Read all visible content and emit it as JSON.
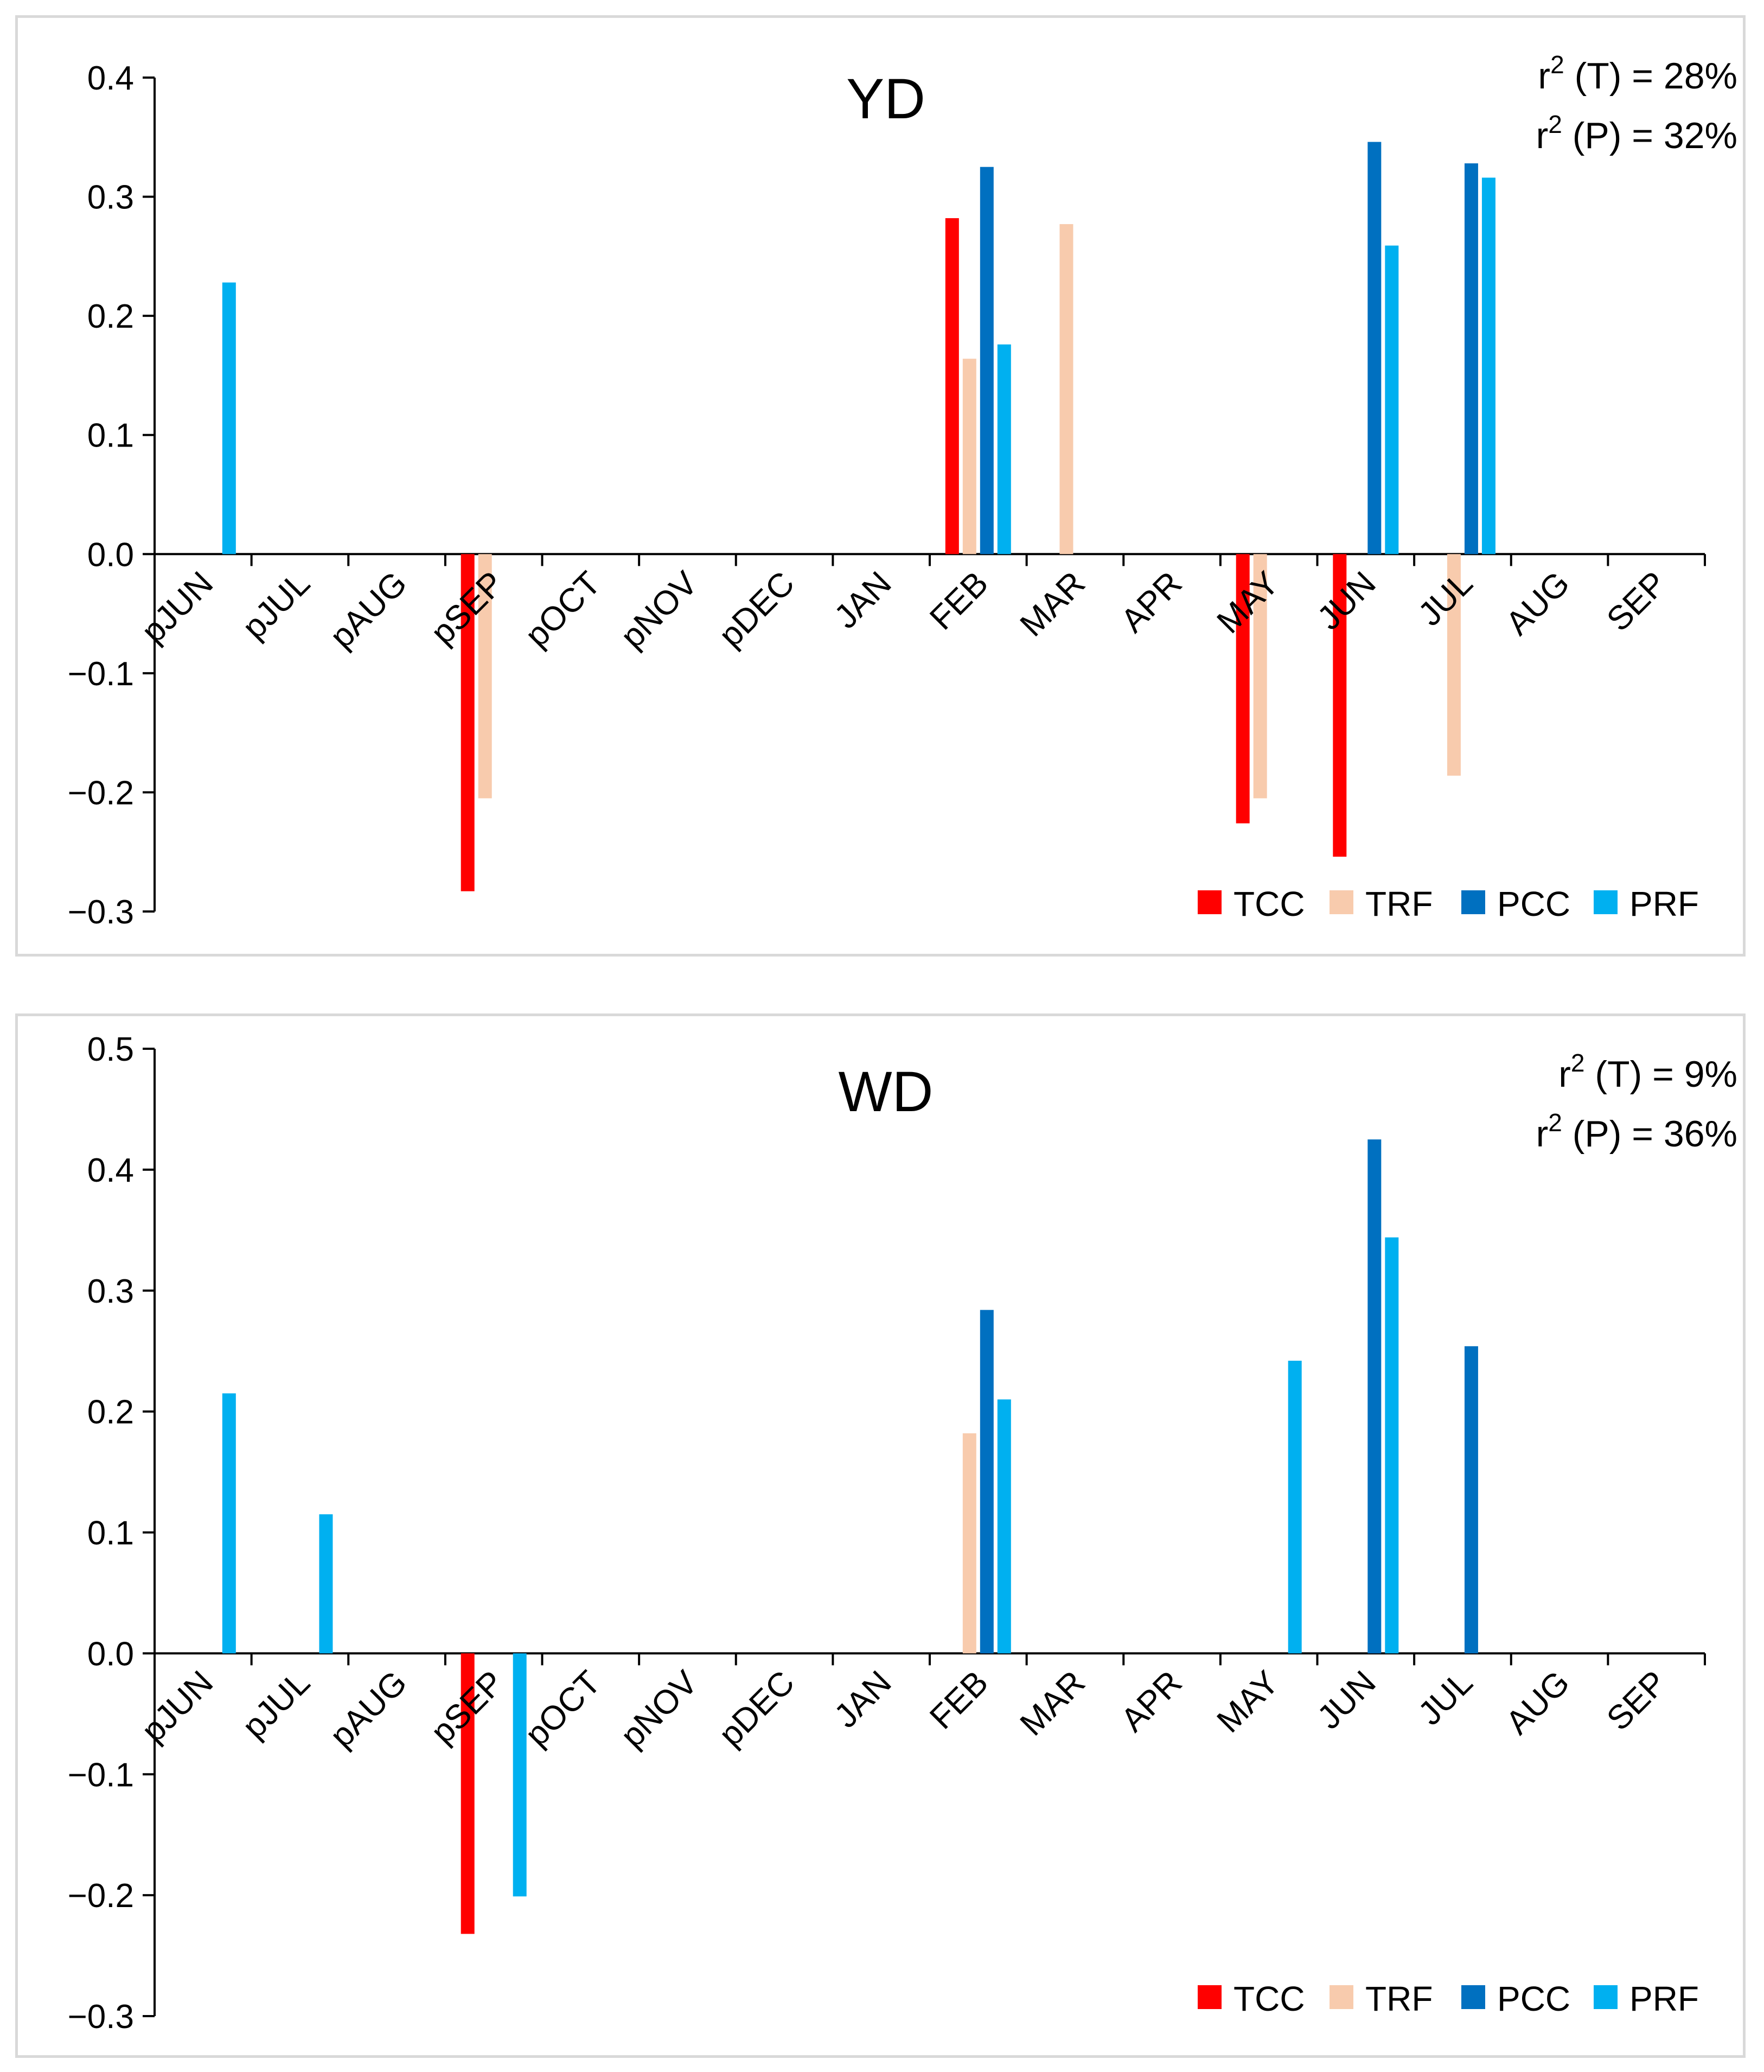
{
  "chart_data": [
    {
      "type": "bar",
      "title": "YD",
      "annotations": [
        {
          "prefix": "r",
          "sup": "2",
          "text": " (T) = 28%"
        },
        {
          "prefix": "r",
          "sup": "2",
          "text": " (P) = 32%"
        }
      ],
      "categories": [
        "pJUN",
        "pJUL",
        "pAUG",
        "pSEP",
        "pOCT",
        "pNOV",
        "pDEC",
        "JAN",
        "FEB",
        "MAR",
        "APR",
        "MAY",
        "JUN",
        "JUL",
        "AUG",
        "SEP"
      ],
      "ylim": [
        -0.3,
        0.4
      ],
      "yticks": [
        0.4,
        0.3,
        0.2,
        0.1,
        0.0,
        -0.1,
        -0.2,
        -0.3
      ],
      "ytick_labels": [
        "0.4",
        "0.3",
        "0.2",
        "0.1",
        "0.0",
        "−0.1",
        "−0.2",
        "−0.3"
      ],
      "legend_position": "bottom-right",
      "series": [
        {
          "name": "TCC",
          "color": "#ff0000",
          "values": [
            null,
            null,
            null,
            -0.283,
            null,
            null,
            null,
            null,
            0.282,
            null,
            null,
            -0.226,
            -0.254,
            null,
            null,
            null
          ]
        },
        {
          "name": "TRF",
          "color": "#f8cbad",
          "values": [
            null,
            null,
            null,
            -0.205,
            null,
            null,
            null,
            null,
            0.164,
            0.277,
            null,
            -0.205,
            null,
            -0.186,
            null,
            null
          ]
        },
        {
          "name": "PCC",
          "color": "#0070c0",
          "values": [
            null,
            null,
            null,
            null,
            null,
            null,
            null,
            null,
            0.325,
            null,
            null,
            null,
            0.346,
            0.328,
            null,
            null
          ]
        },
        {
          "name": "PRF",
          "color": "#00b0f0",
          "values": [
            0.228,
            null,
            null,
            null,
            null,
            null,
            null,
            null,
            0.176,
            null,
            null,
            null,
            0.259,
            0.316,
            null,
            null
          ]
        }
      ]
    },
    {
      "type": "bar",
      "title": "WD",
      "annotations": [
        {
          "prefix": "r",
          "sup": "2",
          "text": " (T) = 9%"
        },
        {
          "prefix": "r",
          "sup": "2",
          "text": " (P) = 36%"
        }
      ],
      "categories": [
        "pJUN",
        "pJUL",
        "pAUG",
        "pSEP",
        "pOCT",
        "pNOV",
        "pDEC",
        "JAN",
        "FEB",
        "MAR",
        "APR",
        "MAY",
        "JUN",
        "JUL",
        "AUG",
        "SEP"
      ],
      "ylim": [
        -0.3,
        0.5
      ],
      "yticks": [
        0.5,
        0.4,
        0.3,
        0.2,
        0.1,
        0.0,
        -0.1,
        -0.2,
        -0.3
      ],
      "ytick_labels": [
        "0.5",
        "0.4",
        "0.3",
        "0.2",
        "0.1",
        "0.0",
        "−0.1",
        "−0.2",
        "−0.3"
      ],
      "legend_position": "bottom-right",
      "series": [
        {
          "name": "TCC",
          "color": "#ff0000",
          "values": [
            null,
            null,
            null,
            -0.232,
            null,
            null,
            null,
            null,
            null,
            null,
            null,
            null,
            null,
            null,
            null,
            null
          ]
        },
        {
          "name": "TRF",
          "color": "#f8cbad",
          "values": [
            null,
            null,
            null,
            null,
            null,
            null,
            null,
            null,
            0.182,
            null,
            null,
            null,
            null,
            null,
            null,
            null
          ]
        },
        {
          "name": "PCC",
          "color": "#0070c0",
          "values": [
            null,
            null,
            null,
            null,
            null,
            null,
            null,
            null,
            0.284,
            null,
            null,
            null,
            0.425,
            0.254,
            null,
            null
          ]
        },
        {
          "name": "PRF",
          "color": "#00b0f0",
          "values": [
            0.215,
            0.115,
            null,
            -0.201,
            null,
            null,
            null,
            null,
            0.21,
            null,
            null,
            0.242,
            0.344,
            null,
            null,
            null
          ]
        }
      ]
    }
  ]
}
